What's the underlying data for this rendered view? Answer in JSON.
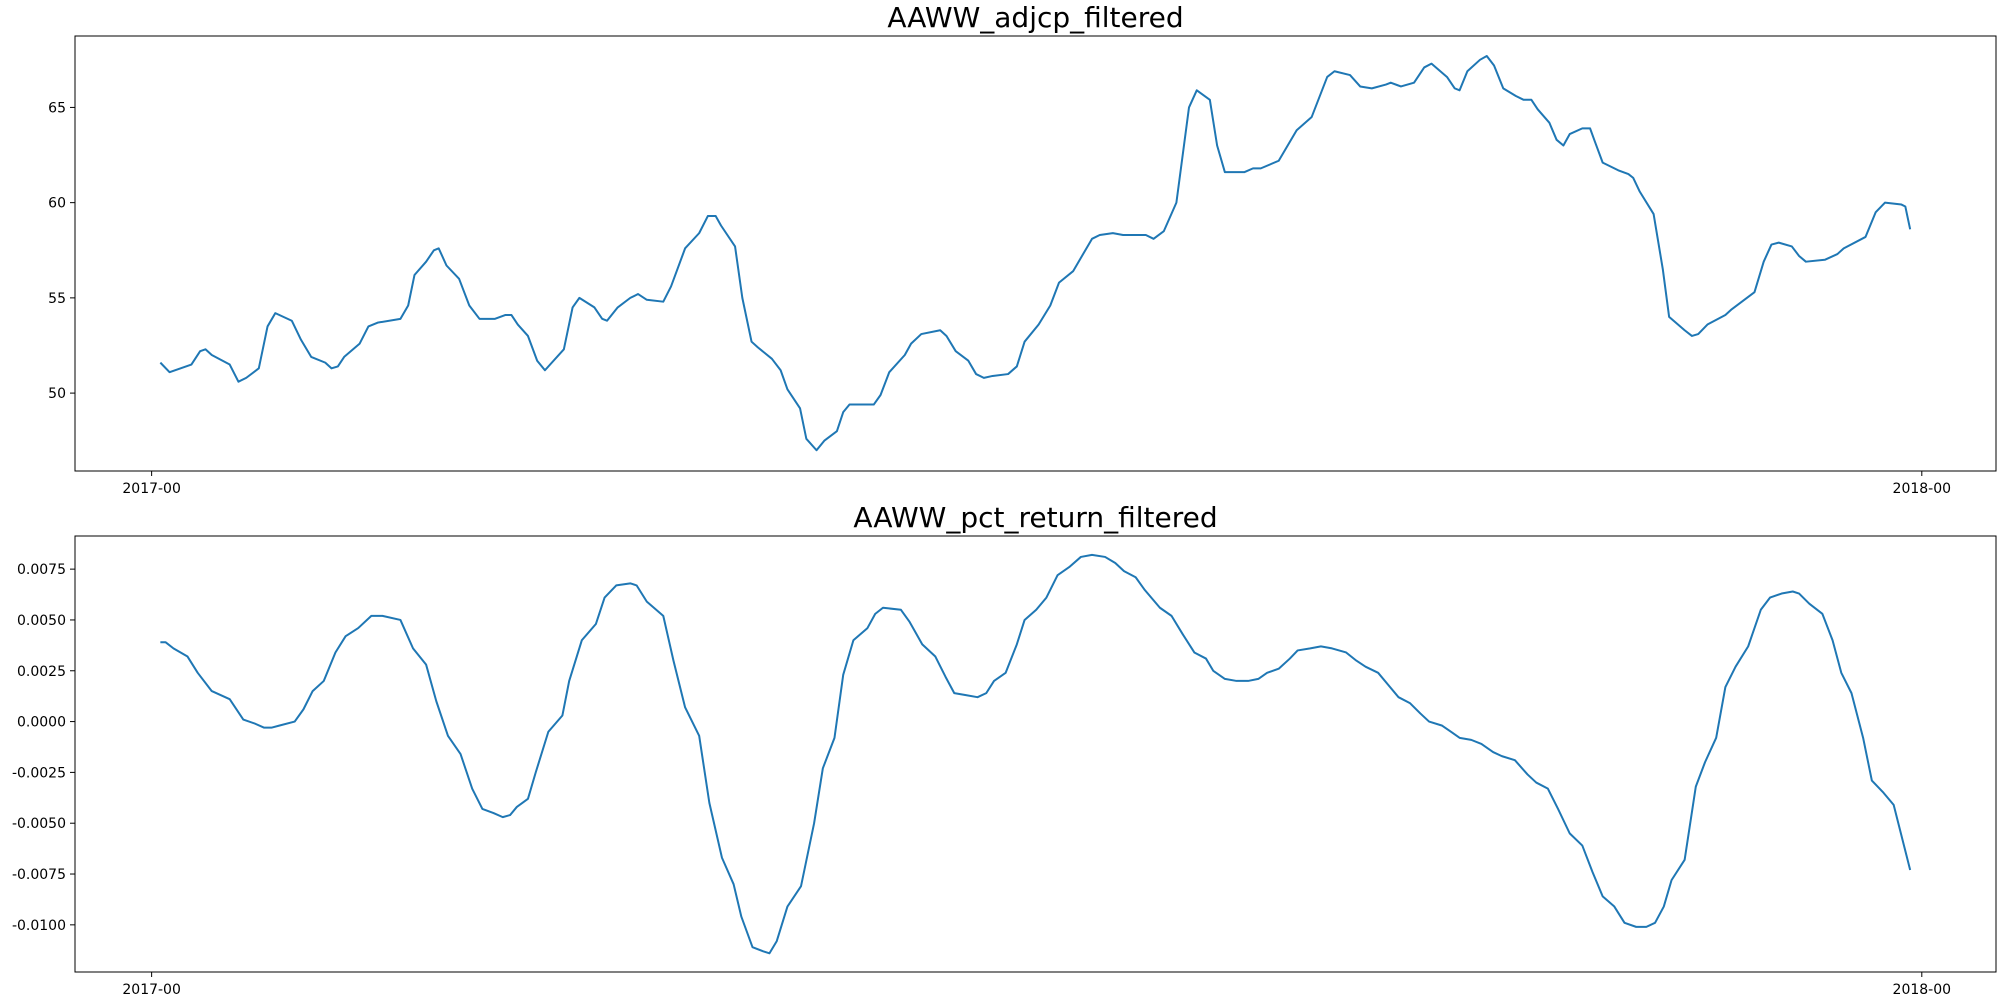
{
  "chart_data": [
    {
      "type": "line",
      "title": "AAWW_adjcp_filtered",
      "color": "#1f77b4",
      "x": [
        1.8,
        3.7,
        8.2,
        10.0,
        11.1,
        12.4,
        16.1,
        17.9,
        19.5,
        22.1,
        23.9,
        25.5,
        28.9,
        30.8,
        32.9,
        35.8,
        37.1,
        38.4,
        39.7,
        42.9,
        44.7,
        46.6,
        51.3,
        52.9,
        54.2,
        56.6,
        58.2,
        59.2,
        60.8,
        63.4,
        65.5,
        67.6,
        70.8,
        72.9,
        74.2,
        75.5,
        77.6,
        79.5,
        81.1,
        85.0,
        86.8,
        88.2,
        91.3,
        92.9,
        93.9,
        96.1,
        98.7,
        100.3,
        102.1,
        105.5,
        107.1,
        110.0,
        112.9,
        114.7,
        116.3,
        117.4,
        120.3,
        121.8,
        123.7,
        125.0,
        127.9,
        129.7,
        131.1,
        133.7,
        135.0,
        137.1,
        138.7,
        141.3,
        142.6,
        143.9,
        148.9,
        150.3,
        152.1,
        155.3,
        156.6,
        158.7,
        162.6,
        163.9,
        165.8,
        168.4,
        170.0,
        171.6,
        173.4,
        176.6,
        178.4,
        180.0,
        182.9,
        185.3,
        187.1,
        190.0,
        193.9,
        195.5,
        198.2,
        200.3,
        205.0,
        206.6,
        208.7,
        211.3,
        213.9,
        215.5,
        218.2,
        219.7,
        221.3,
        225.3,
        227.1,
        228.7,
        232.4,
        236.1,
        239.2,
        242.4,
        243.9,
        247.1,
        249.2,
        251.6,
        254.5,
        255.5,
        257.6,
        260.3,
        262.4,
        263.9,
        267.1,
        268.7,
        269.7,
        271.3,
        273.9,
        275.3,
        276.8,
        278.7,
        281.3,
        282.9,
        284.5,
        285.8,
        288.2,
        289.7,
        291.1,
        292.4,
        295.0,
        296.6,
        297.6,
        299.2,
        302.4,
        304.5,
        305.5,
        306.8,
        309.7,
        311.6,
        312.9,
        316.1,
        317.6,
        318.9,
        320.8,
        324.5,
        325.8,
        330.5,
        332.4,
        334.0,
        335.5,
        338.2,
        339.7,
        341.1,
        345.0,
        347.6,
        348.9,
        353.4,
        355.5,
        357.4,
        360.8,
        361.6,
        362.6
      ],
      "values": [
        51.6,
        51.1,
        51.5,
        52.2,
        52.3,
        52.0,
        51.5,
        50.6,
        50.8,
        51.3,
        53.5,
        54.2,
        53.8,
        52.8,
        51.9,
        51.6,
        51.3,
        51.4,
        51.9,
        52.6,
        53.5,
        53.7,
        53.9,
        54.6,
        56.2,
        56.9,
        57.5,
        57.6,
        56.7,
        56.0,
        54.6,
        53.9,
        53.9,
        54.1,
        54.1,
        53.6,
        53.0,
        51.7,
        51.2,
        52.3,
        54.5,
        55.0,
        54.5,
        53.9,
        53.8,
        54.5,
        55.0,
        55.2,
        54.9,
        54.8,
        55.6,
        57.6,
        58.4,
        59.3,
        59.3,
        58.8,
        57.7,
        55.0,
        52.7,
        52.4,
        51.8,
        51.2,
        50.2,
        49.2,
        47.6,
        47.0,
        47.5,
        48.0,
        49.0,
        49.4,
        49.4,
        49.9,
        51.1,
        52.0,
        52.6,
        53.1,
        53.3,
        53.0,
        52.2,
        51.7,
        51.0,
        50.8,
        50.9,
        51.0,
        51.4,
        52.7,
        53.6,
        54.6,
        55.8,
        56.4,
        58.1,
        58.3,
        58.4,
        58.3,
        58.3,
        58.1,
        58.5,
        60.0,
        65.0,
        65.9,
        65.4,
        63.0,
        61.6,
        61.6,
        61.8,
        61.8,
        62.2,
        63.8,
        64.5,
        66.6,
        66.9,
        66.7,
        66.1,
        66.0,
        66.2,
        66.3,
        66.1,
        66.3,
        67.1,
        67.3,
        66.6,
        66.0,
        65.9,
        66.9,
        67.5,
        67.7,
        67.2,
        66.0,
        65.6,
        65.4,
        65.4,
        64.9,
        64.2,
        63.3,
        63.0,
        63.6,
        63.9,
        63.9,
        63.2,
        62.1,
        61.7,
        61.5,
        61.3,
        60.6,
        59.4,
        56.5,
        54.0,
        53.3,
        53.0,
        53.1,
        53.6,
        54.1,
        54.4,
        55.3,
        56.9,
        57.8,
        57.9,
        57.7,
        57.2,
        56.9,
        57.0,
        57.3,
        57.6,
        58.2,
        59.5,
        60.0,
        59.9,
        59.8,
        58.6
      ],
      "xlim": [
        -15.8,
        380.3
      ],
      "xticks": [
        {
          "value": 0,
          "label": "2017-00"
        },
        {
          "value": 365,
          "label": "2018-00"
        }
      ],
      "ylim": [
        45.91,
        68.75
      ],
      "yticks": [
        50,
        55,
        60,
        65
      ]
    },
    {
      "type": "line",
      "title": "AAWW_pct_return_filtered",
      "color": "#1f77b4",
      "x": [
        1.8,
        2.9,
        4.5,
        7.4,
        9.5,
        12.4,
        16.1,
        18.9,
        21.3,
        23.2,
        24.7,
        26.3,
        29.5,
        31.3,
        33.2,
        35.5,
        37.9,
        40.0,
        42.6,
        45.3,
        47.6,
        51.3,
        53.9,
        56.6,
        58.7,
        61.1,
        63.7,
        66.1,
        68.2,
        70.5,
        72.4,
        73.9,
        75.3,
        77.6,
        79.2,
        81.8,
        84.7,
        86.1,
        88.7,
        91.6,
        93.4,
        95.8,
        98.7,
        100.0,
        102.1,
        105.5,
        107.6,
        110.0,
        112.9,
        115.0,
        117.6,
        120.0,
        121.6,
        123.9,
        126.1,
        127.4,
        128.9,
        131.1,
        133.9,
        136.6,
        138.4,
        140.8,
        142.6,
        144.7,
        147.6,
        149.2,
        150.8,
        154.5,
        156.3,
        158.9,
        161.6,
        163.7,
        165.5,
        167.9,
        170.3,
        172.1,
        173.7,
        176.1,
        178.4,
        180.0,
        182.4,
        184.5,
        186.8,
        189.2,
        191.6,
        193.9,
        196.6,
        198.7,
        200.5,
        202.9,
        204.7,
        207.9,
        210.3,
        212.6,
        215.0,
        217.4,
        218.9,
        221.3,
        223.7,
        226.1,
        228.2,
        230.0,
        232.4,
        234.7,
        236.3,
        238.9,
        241.1,
        243.4,
        246.3,
        248.4,
        250.3,
        252.9,
        255.0,
        257.1,
        259.5,
        261.6,
        263.4,
        266.1,
        267.9,
        269.7,
        272.1,
        274.2,
        276.6,
        278.4,
        281.1,
        283.7,
        285.5,
        287.9,
        290.0,
        292.4,
        295.0,
        297.1,
        299.2,
        301.6,
        303.7,
        306.1,
        308.2,
        310.0,
        311.8,
        313.4,
        316.1,
        318.4,
        320.3,
        322.6,
        324.5,
        326.6,
        329.2,
        331.8,
        333.7,
        336.1,
        338.4,
        339.7,
        341.8,
        344.5,
        346.6,
        348.4,
        350.5,
        352.9,
        354.7,
        357.1,
        359.2,
        362.6
      ],
      "values": [
        0.0039,
        0.0039,
        0.0036,
        0.0032,
        0.0024,
        0.0015,
        0.0011,
        0.0001,
        -0.0001,
        -0.0003,
        -0.0003,
        -0.0002,
        0.0,
        0.0006,
        0.0015,
        0.002,
        0.0034,
        0.0042,
        0.0046,
        0.0052,
        0.0052,
        0.005,
        0.0036,
        0.0028,
        0.001,
        -0.0007,
        -0.0016,
        -0.0033,
        -0.0043,
        -0.0045,
        -0.0047,
        -0.0046,
        -0.0042,
        -0.0038,
        -0.0025,
        -0.0005,
        0.0003,
        0.002,
        0.004,
        0.0048,
        0.0061,
        0.0067,
        0.0068,
        0.0067,
        0.0059,
        0.0052,
        0.003,
        0.0007,
        -0.0007,
        -0.004,
        -0.0067,
        -0.008,
        -0.0096,
        -0.0111,
        -0.0113,
        -0.0114,
        -0.0108,
        -0.0091,
        -0.0081,
        -0.005,
        -0.0023,
        -0.0008,
        0.0023,
        0.004,
        0.0046,
        0.0053,
        0.0056,
        0.0055,
        0.0049,
        0.0038,
        0.0032,
        0.0022,
        0.0014,
        0.0013,
        0.0012,
        0.0014,
        0.002,
        0.0024,
        0.0038,
        0.005,
        0.0055,
        0.0061,
        0.0072,
        0.0076,
        0.0081,
        0.0082,
        0.0081,
        0.0078,
        0.0074,
        0.0071,
        0.0065,
        0.0056,
        0.0052,
        0.0043,
        0.0034,
        0.0031,
        0.0025,
        0.0021,
        0.002,
        0.002,
        0.0021,
        0.0024,
        0.0026,
        0.0031,
        0.0035,
        0.0036,
        0.0037,
        0.0036,
        0.0034,
        0.003,
        0.0027,
        0.0024,
        0.0018,
        0.0012,
        0.0009,
        0.0004,
        0.0,
        -0.0002,
        -0.0005,
        -0.0008,
        -0.0009,
        -0.0011,
        -0.0015,
        -0.0017,
        -0.0019,
        -0.0026,
        -0.003,
        -0.0033,
        -0.0043,
        -0.0055,
        -0.0061,
        -0.0074,
        -0.0086,
        -0.0091,
        -0.0099,
        -0.0101,
        -0.0101,
        -0.0099,
        -0.0091,
        -0.0078,
        -0.0068,
        -0.0032,
        -0.002,
        -0.0008,
        0.0017,
        0.0027,
        0.0037,
        0.0055,
        0.0061,
        0.0063,
        0.0064,
        0.0063,
        0.0058,
        0.0053,
        0.004,
        0.0024,
        0.0014,
        -0.0008,
        -0.0029,
        -0.0035,
        -0.0041,
        -0.0073
      ],
      "xlim": [
        -15.8,
        380.3
      ],
      "xticks": [
        {
          "value": 0,
          "label": "2017-00"
        },
        {
          "value": 365,
          "label": "2018-00"
        }
      ],
      "ylim": [
        -0.01232,
        0.00913
      ],
      "yticks": [
        {
          "value": -0.01,
          "label": "-0.0100"
        },
        -0.0075,
        {
          "value": -0.005,
          "label": "-0.0050"
        },
        -0.0025,
        {
          "value": 0,
          "label": "0.0000"
        },
        0.0025,
        {
          "value": 0.005,
          "label": "0.0050"
        },
        0.0075
      ]
    }
  ]
}
